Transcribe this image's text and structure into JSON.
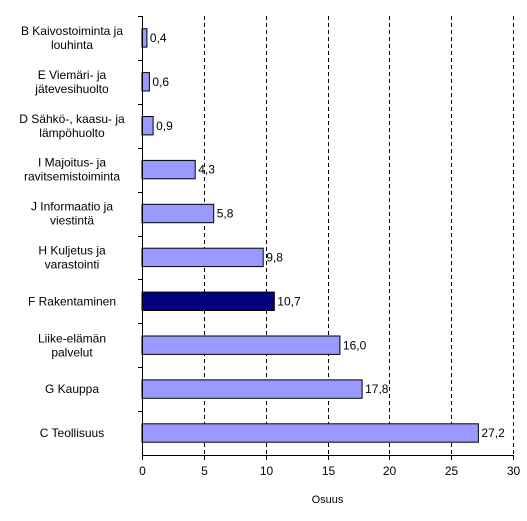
{
  "chart_data": {
    "type": "bar",
    "orientation": "horizontal",
    "categories": [
      [
        "B Kaivostoiminta ja",
        "louhinta"
      ],
      [
        "E Viemäri- ja",
        "jätevesihuolto"
      ],
      [
        "D Sähkö-, kaasu- ja",
        "lämpöhuolto"
      ],
      [
        "I Majoitus- ja",
        "ravitsemistoiminta"
      ],
      [
        "J Informaatio ja",
        "viestintä"
      ],
      [
        "H Kuljetus ja",
        "varastointi"
      ],
      [
        "F Rakentaminen"
      ],
      [
        "Liike-elämän",
        "palvelut"
      ],
      [
        "G Kauppa"
      ],
      [
        "C Teollisuus"
      ]
    ],
    "values": [
      0.4,
      0.6,
      0.9,
      4.3,
      5.8,
      9.8,
      10.7,
      16.0,
      17.8,
      27.2
    ],
    "value_labels": [
      "0,4",
      "0,6",
      "0,9",
      "4,3",
      "5,8",
      "9,8",
      "10,7",
      "16,0",
      "17,8",
      "27,2"
    ],
    "highlight_index": 6,
    "colors": {
      "bar": "#9999ff",
      "highlight": "#000080",
      "bar_edge": "#000000",
      "grid": "#000000"
    },
    "xlabel": "Osuus",
    "xlim": [
      0,
      30
    ],
    "xticks": [
      0,
      5,
      10,
      15,
      20,
      25,
      30
    ],
    "grid": "vertical-dashed",
    "legend": "none"
  }
}
